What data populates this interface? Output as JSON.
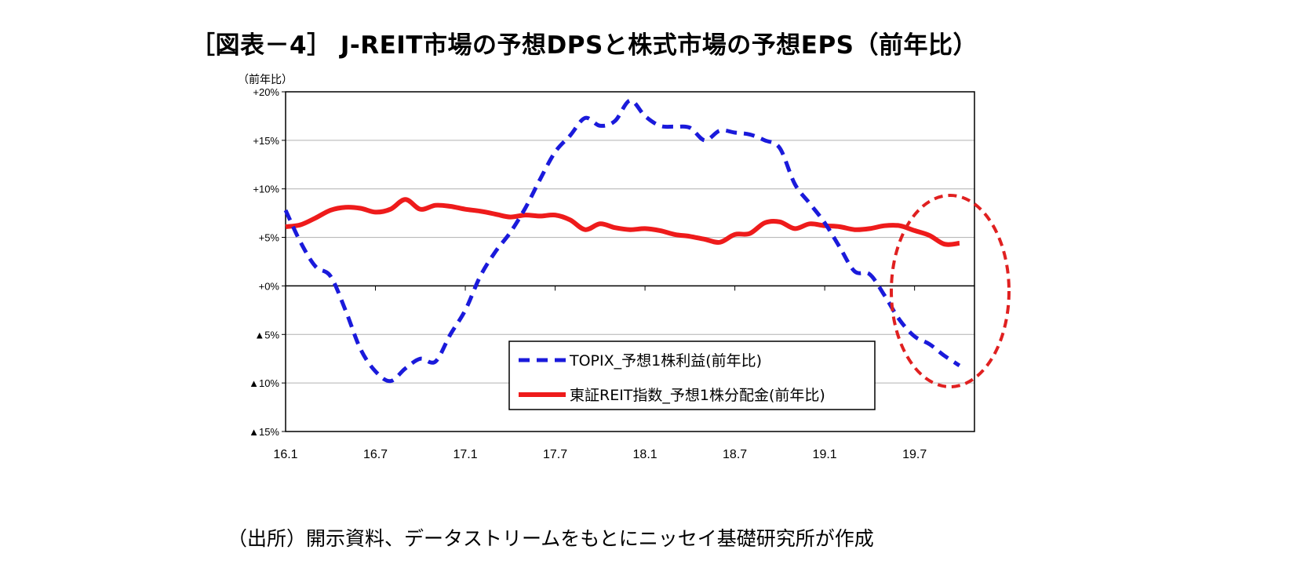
{
  "title": "［図表－4］ J-REIT市場の予想DPSと株式市場の予想EPS（前年比）",
  "source": "（出所）開示資料、データストリームをもとにニッセイ基礎研究所が作成",
  "chart_data": {
    "type": "line",
    "ylabel": "（前年比）",
    "ylim": [
      -15,
      20
    ],
    "y_ticks": [
      20,
      15,
      10,
      5,
      0,
      -5,
      -10,
      -15
    ],
    "y_tick_labels": [
      "+20%",
      "+15%",
      "+10%",
      "+5%",
      "+0%",
      "▲5%",
      "▲10%",
      "▲15%"
    ],
    "xlim": [
      "2016-01",
      "2019-11"
    ],
    "x_ticks": [
      "2016-01",
      "2016-07",
      "2017-01",
      "2017-07",
      "2018-01",
      "2018-07",
      "2019-01",
      "2019-07"
    ],
    "x_tick_labels": [
      "16.1",
      "16.7",
      "17.1",
      "17.7",
      "18.1",
      "18.7",
      "19.1",
      "19.7"
    ],
    "grid": true,
    "legend_position": "bottom-center",
    "annotation": "red dashed ellipse highlighting the latest months (2019-05 to 2019-11)",
    "series": [
      {
        "name": "TOPIX_予想1株利益(前年比)",
        "style": "dashed",
        "color": "#1a1adb",
        "points": [
          [
            "2016-01",
            7.8
          ],
          [
            "2016-02",
            4.5
          ],
          [
            "2016-03",
            2.0
          ],
          [
            "2016-04",
            1.0
          ],
          [
            "2016-05",
            -2.5
          ],
          [
            "2016-06",
            -6.5
          ],
          [
            "2016-07",
            -8.8
          ],
          [
            "2016-08",
            -9.8
          ],
          [
            "2016-09",
            -8.5
          ],
          [
            "2016-10",
            -7.5
          ],
          [
            "2016-11",
            -7.8
          ],
          [
            "2016-12",
            -5.0
          ],
          [
            "2017-01",
            -2.5
          ],
          [
            "2017-02",
            1.0
          ],
          [
            "2017-03",
            3.5
          ],
          [
            "2017-04",
            5.5
          ],
          [
            "2017-05",
            8.0
          ],
          [
            "2017-06",
            11.0
          ],
          [
            "2017-07",
            13.8
          ],
          [
            "2017-08",
            15.5
          ],
          [
            "2017-09",
            17.3
          ],
          [
            "2017-10",
            16.5
          ],
          [
            "2017-11",
            17.0
          ],
          [
            "2017-12",
            19.1
          ],
          [
            "2018-01",
            17.5
          ],
          [
            "2018-02",
            16.5
          ],
          [
            "2018-03",
            16.4
          ],
          [
            "2018-04",
            16.3
          ],
          [
            "2018-05",
            15.0
          ],
          [
            "2018-06",
            16.0
          ],
          [
            "2018-07",
            15.8
          ],
          [
            "2018-08",
            15.6
          ],
          [
            "2018-09",
            15.0
          ],
          [
            "2018-10",
            14.2
          ],
          [
            "2018-11",
            10.5
          ],
          [
            "2018-12",
            8.5
          ],
          [
            "2019-01",
            6.5
          ],
          [
            "2019-02",
            4.0
          ],
          [
            "2019-03",
            1.5
          ],
          [
            "2019-04",
            1.2
          ],
          [
            "2019-05",
            -1.0
          ],
          [
            "2019-06",
            -3.5
          ],
          [
            "2019-07",
            -5.2
          ],
          [
            "2019-08",
            -6.0
          ],
          [
            "2019-09",
            -7.2
          ],
          [
            "2019-10",
            -8.2
          ]
        ]
      },
      {
        "name": "東証REIT指数_予想1株分配金(前年比)",
        "style": "solid",
        "color": "#ee1b1b",
        "points": [
          [
            "2016-01",
            6.1
          ],
          [
            "2016-02",
            6.3
          ],
          [
            "2016-03",
            7.0
          ],
          [
            "2016-04",
            7.8
          ],
          [
            "2016-05",
            8.1
          ],
          [
            "2016-06",
            8.0
          ],
          [
            "2016-07",
            7.6
          ],
          [
            "2016-08",
            7.9
          ],
          [
            "2016-09",
            8.9
          ],
          [
            "2016-10",
            7.9
          ],
          [
            "2016-11",
            8.3
          ],
          [
            "2016-12",
            8.2
          ],
          [
            "2017-01",
            7.9
          ],
          [
            "2017-02",
            7.7
          ],
          [
            "2017-03",
            7.4
          ],
          [
            "2017-04",
            7.1
          ],
          [
            "2017-05",
            7.3
          ],
          [
            "2017-06",
            7.2
          ],
          [
            "2017-07",
            7.3
          ],
          [
            "2017-08",
            6.8
          ],
          [
            "2017-09",
            5.8
          ],
          [
            "2017-10",
            6.4
          ],
          [
            "2017-11",
            6.0
          ],
          [
            "2017-12",
            5.8
          ],
          [
            "2018-01",
            5.9
          ],
          [
            "2018-02",
            5.7
          ],
          [
            "2018-03",
            5.3
          ],
          [
            "2018-04",
            5.1
          ],
          [
            "2018-05",
            4.8
          ],
          [
            "2018-06",
            4.5
          ],
          [
            "2018-07",
            5.3
          ],
          [
            "2018-08",
            5.4
          ],
          [
            "2018-09",
            6.5
          ],
          [
            "2018-10",
            6.6
          ],
          [
            "2018-11",
            5.9
          ],
          [
            "2018-12",
            6.4
          ],
          [
            "2019-01",
            6.2
          ],
          [
            "2019-02",
            6.1
          ],
          [
            "2019-03",
            5.8
          ],
          [
            "2019-04",
            5.9
          ],
          [
            "2019-05",
            6.2
          ],
          [
            "2019-06",
            6.2
          ],
          [
            "2019-07",
            5.7
          ],
          [
            "2019-08",
            5.2
          ],
          [
            "2019-09",
            4.3
          ],
          [
            "2019-10",
            4.4
          ]
        ]
      }
    ]
  }
}
